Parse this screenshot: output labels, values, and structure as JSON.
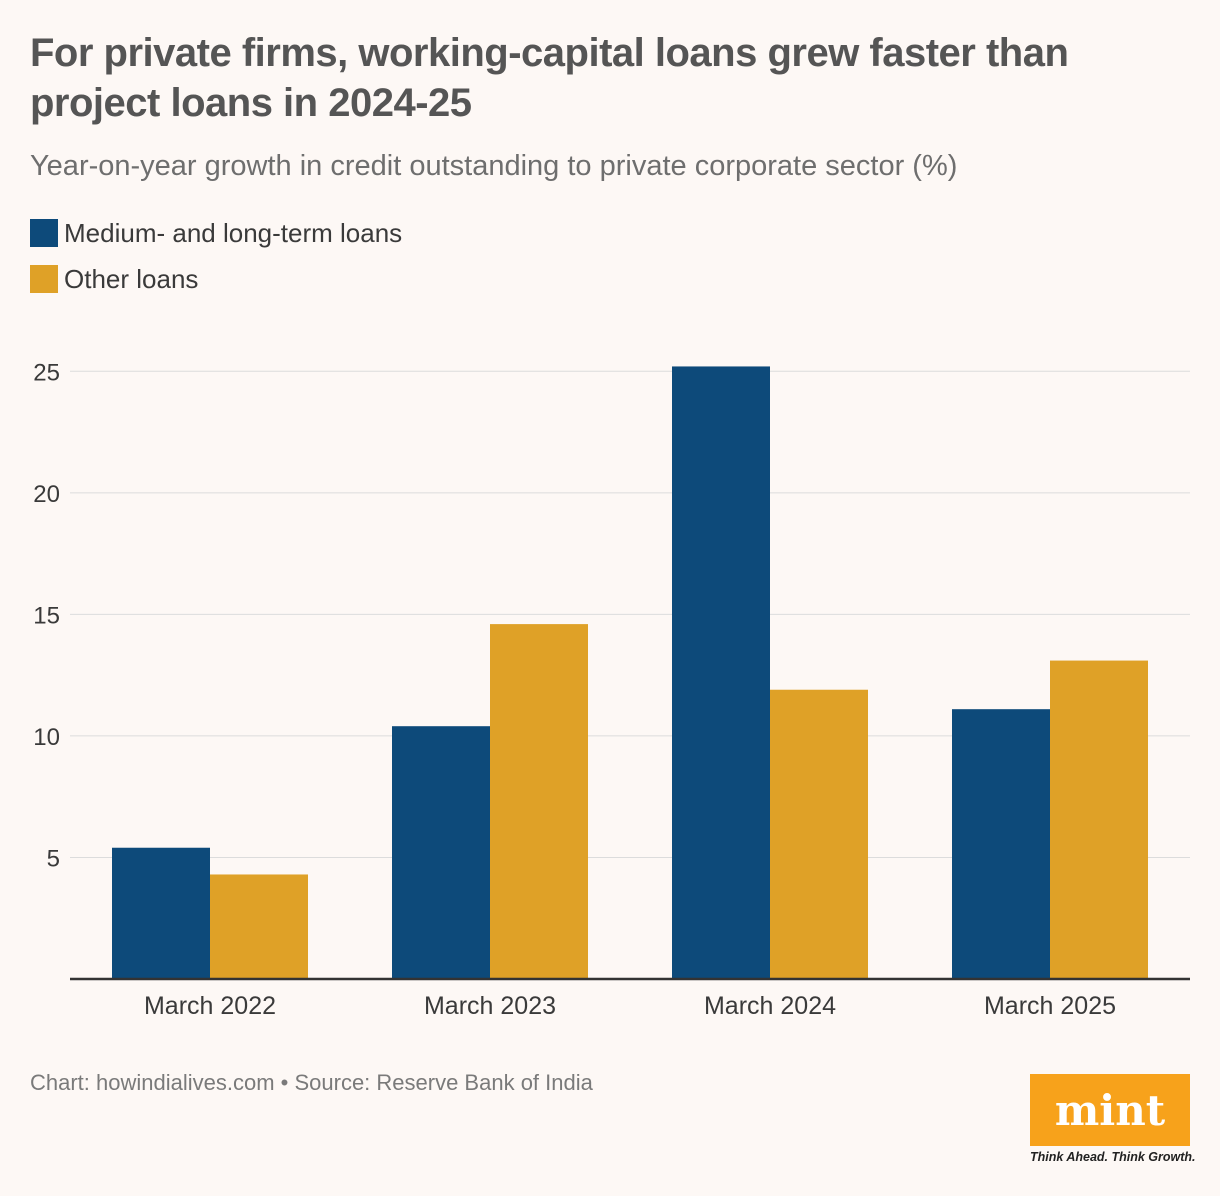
{
  "header": {
    "title": "For private firms, working-capital loans grew faster than project loans in 2024-25",
    "subtitle": "Year-on-year growth in credit outstanding to private corporate sector (%)"
  },
  "footer": {
    "credit": "Chart: howindialives.com • Source: Reserve Bank of India"
  },
  "logo": {
    "text": "mint",
    "tagline": "Think Ahead. Think Growth."
  },
  "colors": {
    "series1": "#0d4a7a",
    "series2": "#dfa127",
    "grid": "#dcdcdc",
    "axis": "#333333"
  },
  "chart_data": {
    "type": "bar",
    "categories": [
      "March 2022",
      "March 2023",
      "March 2024",
      "March 2025"
    ],
    "series": [
      {
        "name": "Medium- and long-term loans",
        "values": [
          5.4,
          10.4,
          25.2,
          11.1
        ]
      },
      {
        "name": "Other loans",
        "values": [
          4.3,
          14.6,
          11.9,
          13.1
        ]
      }
    ],
    "yticks": [
      5,
      10,
      15,
      20,
      25
    ],
    "ylim": [
      0,
      26
    ],
    "grid": true,
    "legend": "top-left"
  }
}
